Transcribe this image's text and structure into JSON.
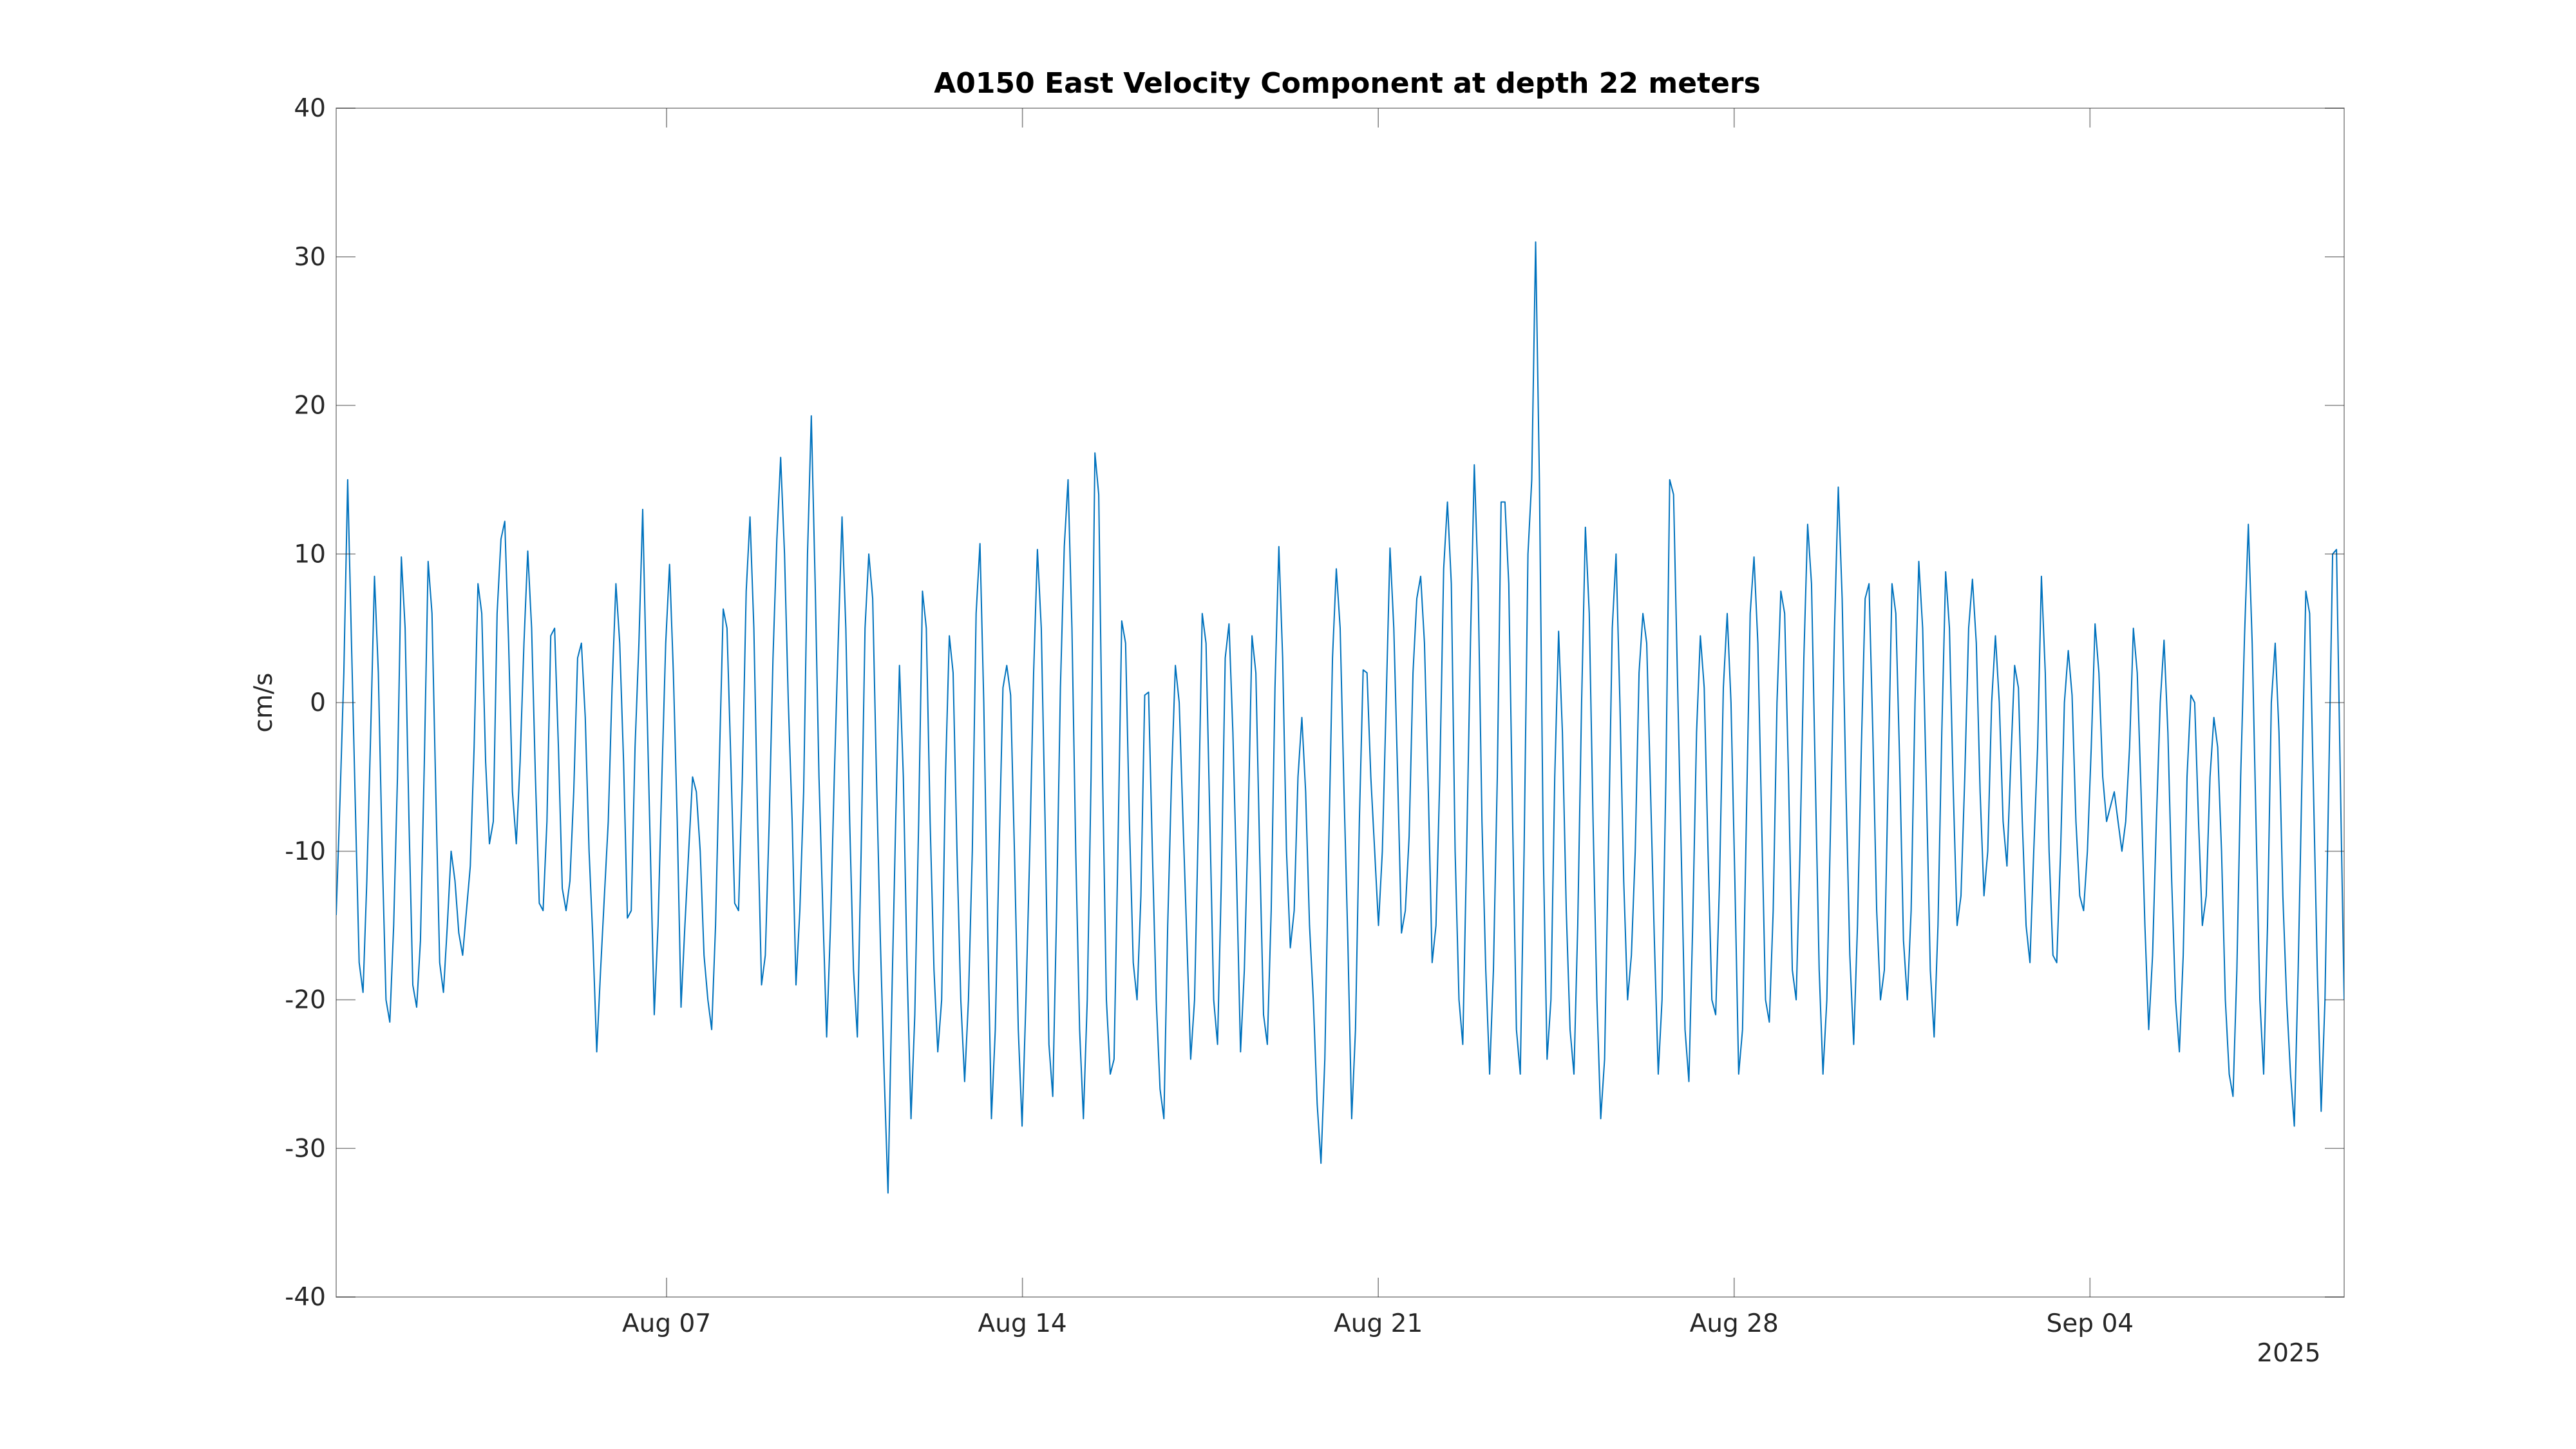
{
  "chart_data": {
    "type": "line",
    "title": "A0150 East Velocity Component at depth 22 meters",
    "xlabel": "",
    "ylabel": "cm/s",
    "x_start": "2025-07-31T12:00",
    "x_end": "2025-09-09",
    "xlim": [
      "2025-07-31T12:00",
      "2025-09-09"
    ],
    "ylim": [
      -40,
      40
    ],
    "x_ticks": [
      {
        "date": "2025-08-07",
        "label": "Aug 07"
      },
      {
        "date": "2025-08-14",
        "label": "Aug 14"
      },
      {
        "date": "2025-08-21",
        "label": "Aug 21"
      },
      {
        "date": "2025-08-28",
        "label": "Aug 28"
      },
      {
        "date": "2025-09-04",
        "label": "Sep 04"
      }
    ],
    "x_year_label": "2025",
    "y_ticks": [
      -40,
      -30,
      -20,
      -10,
      0,
      10,
      20,
      30,
      40
    ],
    "y_tick_labels": [
      "-40",
      "-30",
      "-20",
      "-10",
      "0",
      "10",
      "20",
      "30",
      "40"
    ],
    "grid": false,
    "legend": "none",
    "line_color": "#0072BD",
    "series": [
      {
        "sample_interval_hours": 1,
        "values": [
          -14.3,
          -6.5,
          2.0,
          15.0,
          4.0,
          -7.0,
          -17.5,
          -19.5,
          -12.0,
          -2.0,
          8.5,
          2.0,
          -10.0,
          -20.0,
          -21.5,
          -15.0,
          -5.0,
          9.8,
          5.0,
          -8.0,
          -19.0,
          -20.5,
          -16.0,
          -4.0,
          9.5,
          6.0,
          -6.0,
          -17.5,
          -19.5,
          -15.0,
          -10.0,
          -12.0,
          -15.5,
          -17.0,
          -14.0,
          -11.0,
          -3.0,
          8.0,
          6.0,
          -4.0,
          -9.5,
          -8.0,
          6.0,
          11.0,
          12.2,
          4.0,
          -6.0,
          -9.5,
          -4.0,
          4.0,
          10.2,
          5.0,
          -5.0,
          -13.5,
          -14.0,
          -8.0,
          4.5,
          5.0,
          -3.0,
          -12.5,
          -14.0,
          -12.0,
          -6.0,
          3.0,
          4.0,
          -1.0,
          -10.0,
          -16.0,
          -23.5,
          -18.0,
          -13.0,
          -8.0,
          1.0,
          8.0,
          4.0,
          -4.0,
          -14.5,
          -14.0,
          -3.0,
          4.0,
          13.0,
          1.0,
          -10.0,
          -21.0,
          -15.0,
          -5.0,
          4.0,
          9.3,
          2.0,
          -8.0,
          -20.5,
          -15.0,
          -10.0,
          -5.0,
          -6.0,
          -10.0,
          -17.0,
          -20.0,
          -22.0,
          -15.0,
          -4.0,
          6.3,
          5.0,
          -4.0,
          -13.5,
          -14.0,
          -5.0,
          7.5,
          12.5,
          5.0,
          -8.0,
          -19.0,
          -17.0,
          -8.0,
          3.0,
          11.0,
          16.5,
          10.0,
          0.0,
          -8.0,
          -19.0,
          -14.0,
          -6.0,
          10.0,
          19.3,
          8.0,
          -5.0,
          -14.0,
          -22.5,
          -15.0,
          -5.0,
          4.0,
          12.5,
          5.0,
          -8.0,
          -18.0,
          -22.5,
          -10.0,
          5.0,
          10.0,
          7.0,
          -5.0,
          -16.0,
          -25.0,
          -33.0,
          -20.0,
          -8.0,
          2.5,
          -5.0,
          -18.0,
          -28.0,
          -21.0,
          -8.0,
          7.5,
          5.0,
          -8.0,
          -18.0,
          -23.5,
          -20.0,
          -5.0,
          4.5,
          2.0,
          -10.0,
          -20.0,
          -25.5,
          -20.0,
          -10.0,
          6.0,
          10.7,
          0.0,
          -15.0,
          -28.0,
          -22.0,
          -10.0,
          1.0,
          2.5,
          0.5,
          -10.0,
          -22.0,
          -28.5,
          -20.0,
          -10.0,
          2.0,
          10.3,
          5.0,
          -8.0,
          -23.0,
          -26.5,
          -14.0,
          1.0,
          10.5,
          15.0,
          5.0,
          -10.0,
          -22.0,
          -28.0,
          -20.0,
          -5.0,
          16.8,
          14.0,
          -5.0,
          -20.0,
          -25.0,
          -24.0,
          -10.0,
          5.5,
          4.0,
          -8.0,
          -17.5,
          -20.0,
          -13.0,
          0.5,
          0.7,
          -10.0,
          -20.0,
          -26.0,
          -28.0,
          -15.0,
          -5.0,
          2.5,
          0.0,
          -8.0,
          -16.0,
          -24.0,
          -20.0,
          -8.0,
          6.0,
          4.0,
          -8.0,
          -20.0,
          -23.0,
          -12.0,
          3.0,
          5.3,
          -2.0,
          -12.0,
          -23.5,
          -18.0,
          -8.0,
          4.5,
          2.0,
          -10.0,
          -21.0,
          -23.0,
          -14.0,
          1.0,
          10.5,
          3.0,
          -10.0,
          -16.5,
          -14.0,
          -5.0,
          -1.0,
          -6.0,
          -15.0,
          -20.0,
          -27.0,
          -31.0,
          -24.0,
          -10.0,
          3.0,
          9.0,
          5.0,
          -6.0,
          -16.0,
          -28.0,
          -22.0,
          -8.0,
          2.2,
          2.0,
          -5.0,
          -10.0,
          -15.0,
          -10.0,
          0.0,
          10.4,
          5.0,
          -5.0,
          -15.5,
          -14.0,
          -9.0,
          2.0,
          7.0,
          8.5,
          4.0,
          -6.0,
          -17.5,
          -15.0,
          -5.0,
          9.0,
          13.5,
          8.0,
          -10.0,
          -20.0,
          -23.0,
          -10.0,
          4.0,
          16.0,
          8.0,
          -8.0,
          -18.0,
          -25.0,
          -18.0,
          -5.0,
          13.5,
          13.5,
          8.0,
          -8.0,
          -22.0,
          -25.0,
          -10.0,
          10.0,
          15.0,
          31.0,
          15.0,
          -10.0,
          -24.0,
          -20.0,
          -5.0,
          4.8,
          -2.0,
          -14.0,
          -22.0,
          -25.0,
          -15.0,
          0.0,
          11.8,
          6.0,
          -8.0,
          -20.0,
          -28.0,
          -24.0,
          -10.0,
          5.0,
          10.0,
          0.0,
          -12.0,
          -20.0,
          -17.0,
          -10.0,
          2.0,
          6.0,
          4.0,
          -6.0,
          -16.0,
          -25.0,
          -20.0,
          -5.0,
          15.0,
          14.0,
          2.0,
          -10.0,
          -22.0,
          -25.5,
          -15.0,
          -2.0,
          4.5,
          1.0,
          -10.0,
          -20.0,
          -21.0,
          -12.0,
          1.0,
          6.0,
          0.0,
          -12.0,
          -25.0,
          -22.0,
          -8.0,
          6.0,
          9.8,
          4.0,
          -8.0,
          -20.0,
          -21.5,
          -14.0,
          0.0,
          7.5,
          6.0,
          -5.0,
          -18.0,
          -20.0,
          -10.0,
          3.0,
          12.0,
          8.0,
          -5.0,
          -18.0,
          -25.0,
          -20.0,
          -8.0,
          5.0,
          14.5,
          7.0,
          -6.0,
          -17.0,
          -23.0,
          -15.0,
          -3.0,
          7.0,
          8.0,
          -2.0,
          -14.0,
          -20.0,
          -18.0,
          -5.0,
          8.0,
          6.0,
          -4.0,
          -16.0,
          -20.0,
          -14.0,
          0.0,
          9.5,
          5.0,
          -6.0,
          -18.0,
          -22.5,
          -15.0,
          -2.0,
          8.8,
          5.0,
          -6.0,
          -15.0,
          -13.0,
          -5.0,
          5.0,
          8.3,
          4.0,
          -6.0,
          -13.0,
          -10.0,
          0.0,
          4.5,
          0.0,
          -8.0,
          -11.0,
          -4.0,
          2.5,
          1.0,
          -8.0,
          -15.0,
          -17.5,
          -10.0,
          -3.0,
          8.5,
          2.0,
          -10.0,
          -17.0,
          -17.5,
          -10.0,
          0.0,
          3.5,
          0.5,
          -8.0,
          -13.0,
          -14.0,
          -10.0,
          -3.0,
          5.3,
          2.0,
          -5.0,
          -8.0,
          -7.0,
          -6.0,
          -8.0,
          -10.0,
          -8.0,
          -3.0,
          5.0,
          2.0,
          -6.0,
          -15.0,
          -22.0,
          -17.0,
          -8.0,
          0.0,
          4.2,
          -2.0,
          -12.0,
          -20.0,
          -23.5,
          -17.0,
          -5.0,
          0.5,
          0.0,
          -8.0,
          -15.0,
          -13.0,
          -5.0,
          -1.0,
          -3.0,
          -10.0,
          -20.0,
          -25.0,
          -26.5,
          -18.0,
          -5.0,
          4.5,
          12.0,
          4.0,
          -8.0,
          -20.0,
          -25.0,
          -15.0,
          0.0,
          4.0,
          -2.0,
          -13.0,
          -20.0,
          -25.0,
          -28.5,
          -18.0,
          -5.0,
          7.5,
          6.0,
          -6.0,
          -18.0,
          -27.5,
          -20.0,
          -5.0,
          10.0,
          10.3,
          -5.0,
          -20.0
        ]
      }
    ]
  }
}
